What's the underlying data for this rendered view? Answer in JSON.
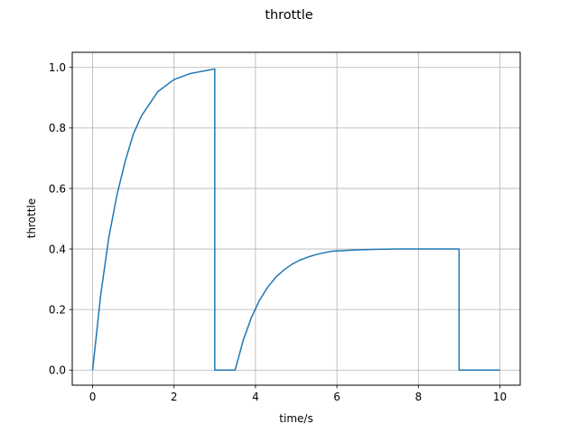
{
  "chart_data": {
    "type": "line",
    "title": "throttle",
    "xlabel": "time/s",
    "ylabel": "throttle",
    "xlim": [
      -0.5,
      10.5
    ],
    "ylim": [
      -0.05,
      1.05
    ],
    "xticks": [
      0,
      2,
      4,
      6,
      8,
      10
    ],
    "xtick_labels": [
      "0",
      "2",
      "4",
      "6",
      "8",
      "10"
    ],
    "yticks": [
      0.0,
      0.2,
      0.4,
      0.6,
      0.8,
      1.0
    ],
    "ytick_labels": [
      "0.0",
      "0.2",
      "0.4",
      "0.6",
      "0.8",
      "1.0"
    ],
    "grid": true,
    "colors": {
      "line": "#1f77b4",
      "grid": "#b0b0b0"
    },
    "series": [
      {
        "x": [
          0,
          0.2,
          0.4,
          0.6,
          0.8,
          1.0,
          1.2,
          1.4,
          1.6,
          1.8,
          2.0,
          2.2,
          2.4,
          2.6,
          2.8,
          3.0,
          3.0,
          3.5,
          3.7,
          3.9,
          4.1,
          4.3,
          4.5,
          4.7,
          4.9,
          5.1,
          5.3,
          5.5,
          5.7,
          5.9,
          6.5,
          7.0,
          7.5,
          8.0,
          8.5,
          9.0,
          9.0,
          9.5,
          10.0
        ],
        "y": [
          0,
          0.25,
          0.44,
          0.58,
          0.69,
          0.78,
          0.84,
          0.88,
          0.92,
          0.94,
          0.96,
          0.97,
          0.98,
          0.985,
          0.99,
          0.995,
          0,
          0,
          0.099,
          0.174,
          0.231,
          0.274,
          0.307,
          0.331,
          0.35,
          0.364,
          0.374,
          0.382,
          0.388,
          0.393,
          0.397,
          0.399,
          0.4,
          0.4,
          0.4,
          0.4,
          0,
          0,
          0
        ]
      }
    ]
  }
}
